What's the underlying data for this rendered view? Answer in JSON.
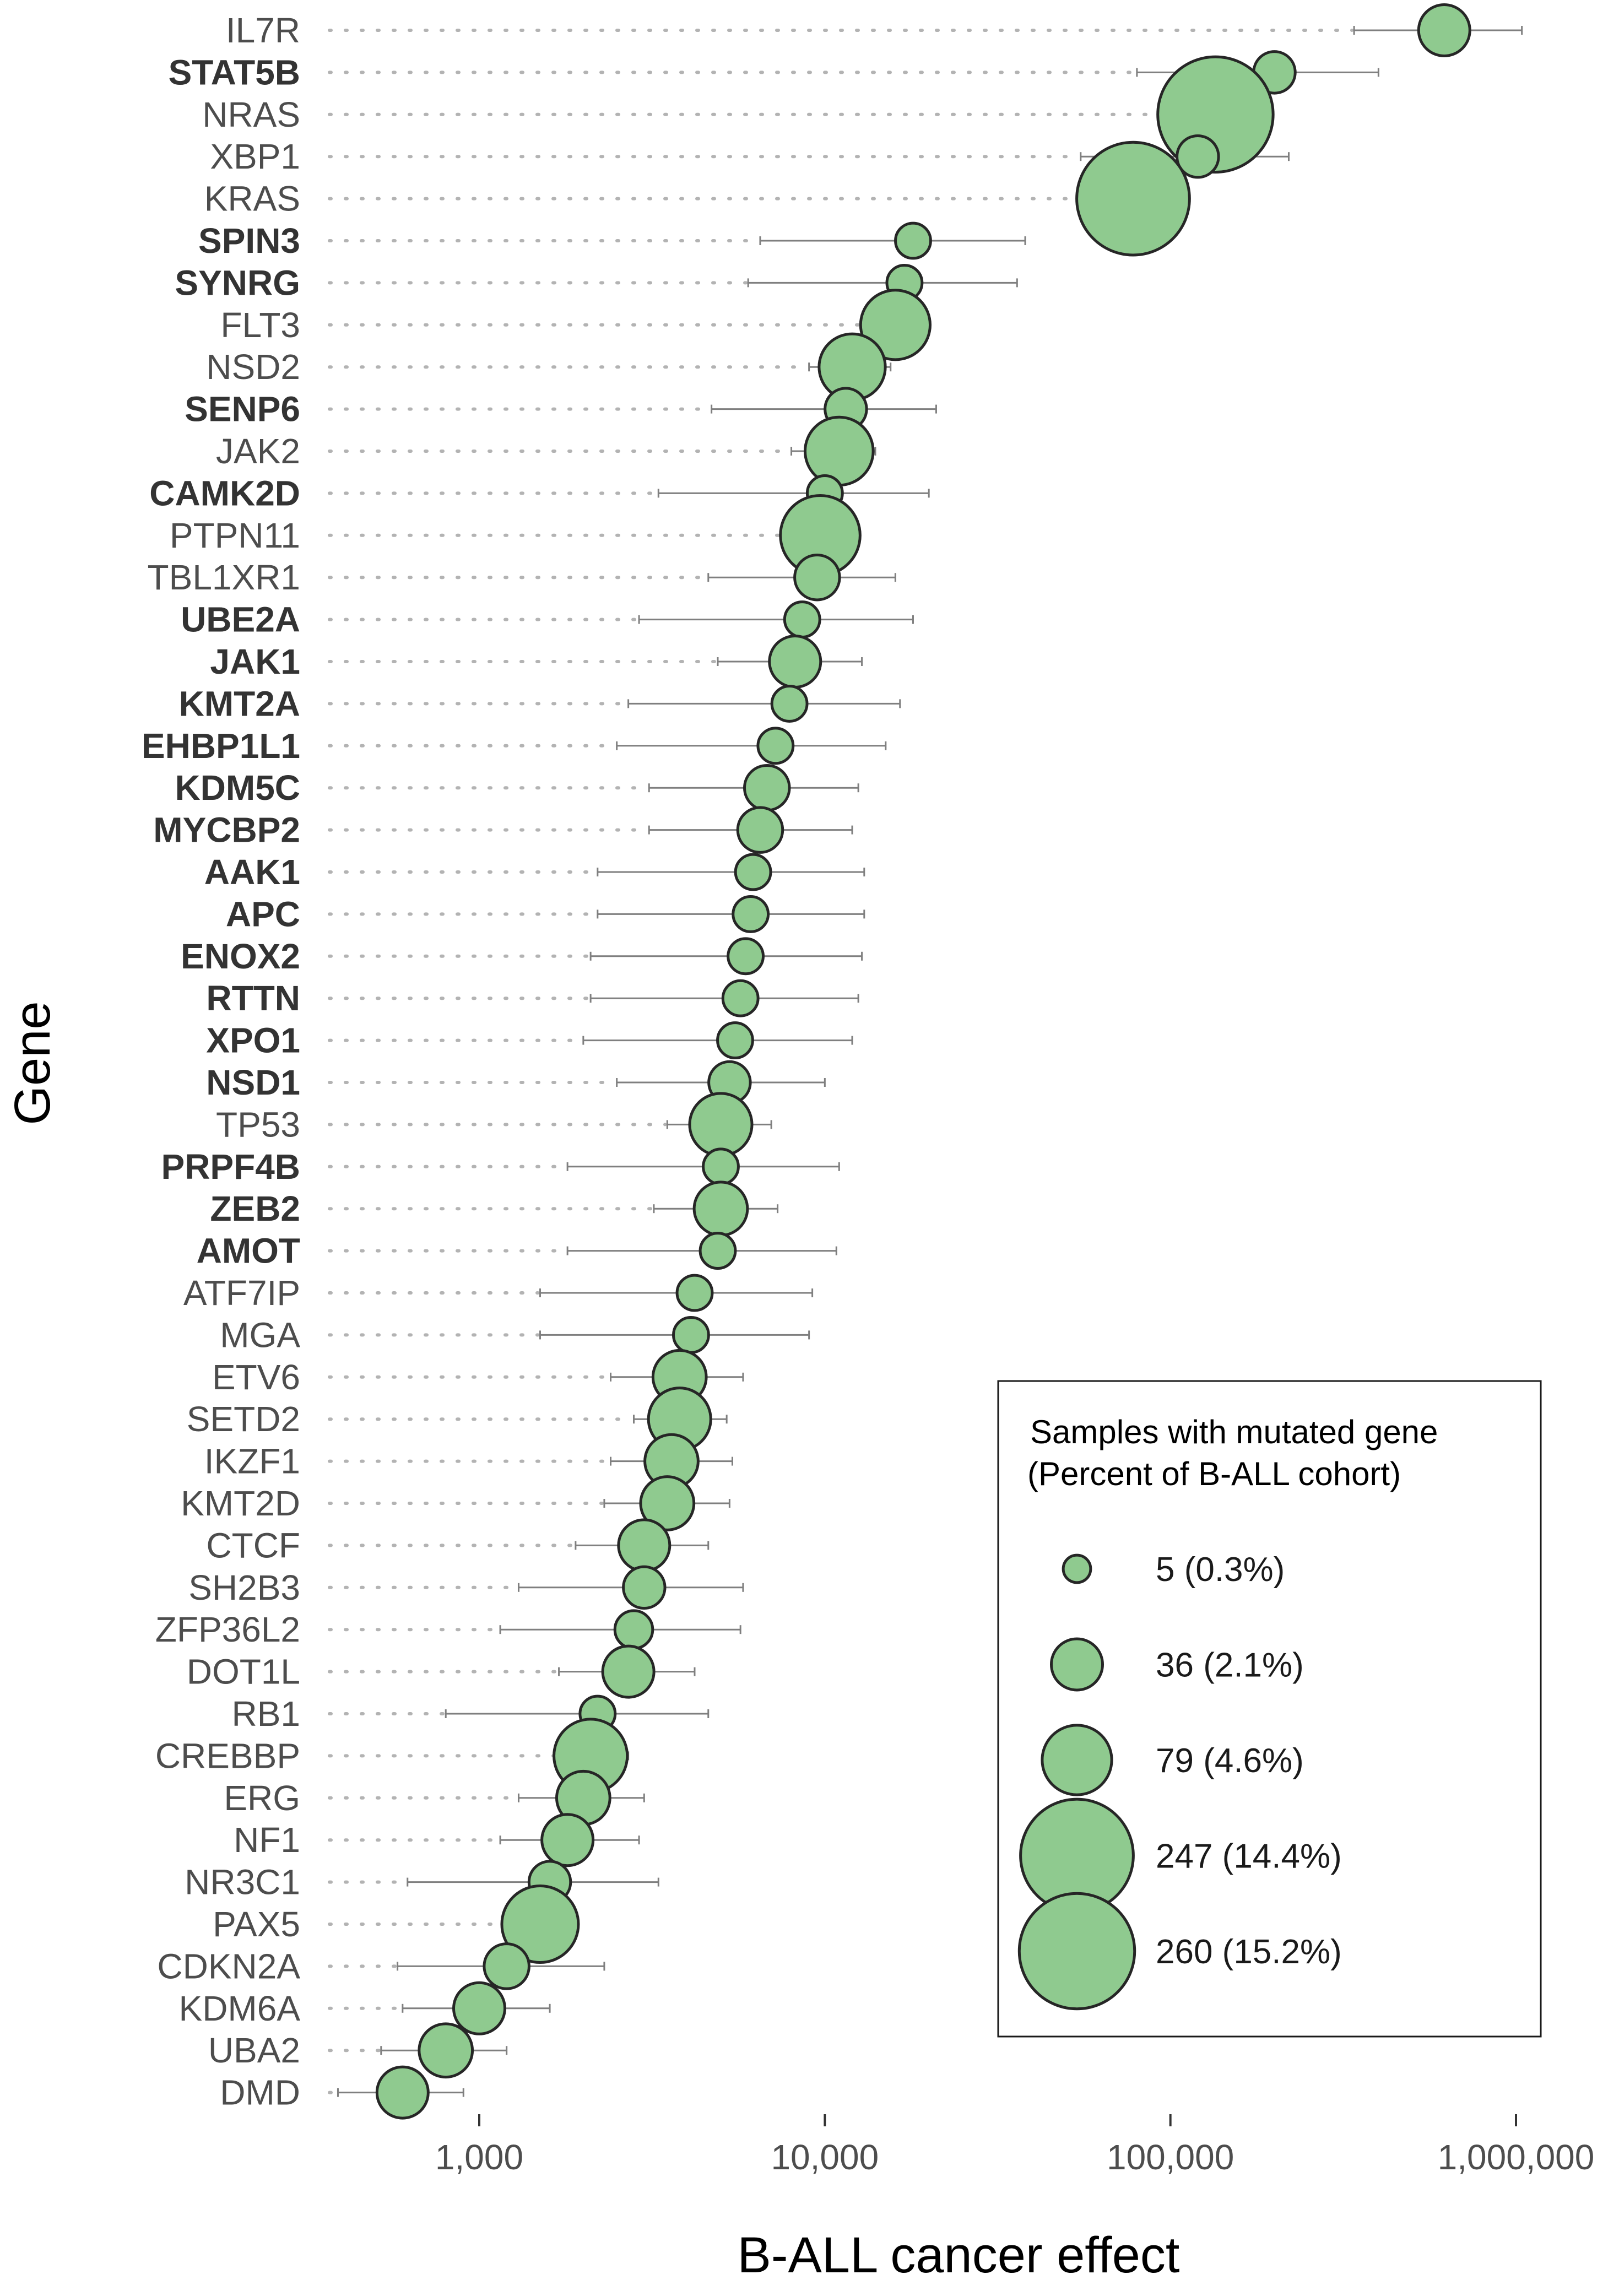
{
  "chart_data": {
    "type": "scatter",
    "xlabel": "B-ALL cancer effect",
    "ylabel": "Gene",
    "xscale": "log",
    "xlim": [
      340,
      1500000
    ],
    "xticks": [
      1000,
      10000,
      100000,
      1000000
    ],
    "xtick_labels": [
      "1,000",
      "10,000",
      "100,000",
      "1,000,000"
    ],
    "point_color": "#8fca8f",
    "genes": [
      {
        "name": "IL7R",
        "bold": false,
        "effect": 620000,
        "ci": [
          340000,
          1040000
        ],
        "samples": 36
      },
      {
        "name": "STAT5B",
        "bold": true,
        "effect": 200000,
        "ci": [
          80000,
          400000
        ],
        "samples": 20
      },
      {
        "name": "NRAS",
        "bold": false,
        "effect": 135000,
        "ci": [
          100000,
          160000
        ],
        "samples": 260
      },
      {
        "name": "XBP1",
        "bold": false,
        "effect": 120000,
        "ci": [
          55000,
          220000
        ],
        "samples": 20
      },
      {
        "name": "KRAS",
        "bold": false,
        "effect": 78000,
        "ci": [
          60000,
          95000
        ],
        "samples": 247
      },
      {
        "name": "SPIN3",
        "bold": true,
        "effect": 18000,
        "ci": [
          6500,
          38000
        ],
        "samples": 12
      },
      {
        "name": "SYNRG",
        "bold": true,
        "effect": 17000,
        "ci": [
          6000,
          36000
        ],
        "samples": 12
      },
      {
        "name": "FLT3",
        "bold": false,
        "effect": 16000,
        "ci": [
          13000,
          20000
        ],
        "samples": 79
      },
      {
        "name": "NSD2",
        "bold": false,
        "effect": 12000,
        "ci": [
          9000,
          15500
        ],
        "samples": 70
      },
      {
        "name": "SENP6",
        "bold": true,
        "effect": 11500,
        "ci": [
          4700,
          21000
        ],
        "samples": 20
      },
      {
        "name": "JAK2",
        "bold": false,
        "effect": 11000,
        "ci": [
          8000,
          14000
        ],
        "samples": 75
      },
      {
        "name": "CAMK2D",
        "bold": true,
        "effect": 10000,
        "ci": [
          3300,
          20000
        ],
        "samples": 12
      },
      {
        "name": "PTPN11",
        "bold": false,
        "effect": 9700,
        "ci": [
          7800,
          11800
        ],
        "samples": 110
      },
      {
        "name": "TBL1XR1",
        "bold": false,
        "effect": 9500,
        "ci": [
          4600,
          16000
        ],
        "samples": 25
      },
      {
        "name": "UBE2A",
        "bold": true,
        "effect": 8600,
        "ci": [
          2900,
          18000
        ],
        "samples": 12
      },
      {
        "name": "JAK1",
        "bold": true,
        "effect": 8200,
        "ci": [
          4900,
          12800
        ],
        "samples": 36
      },
      {
        "name": "KMT2A",
        "bold": true,
        "effect": 7900,
        "ci": [
          2700,
          16500
        ],
        "samples": 12
      },
      {
        "name": "EHBP1L1",
        "bold": true,
        "effect": 7200,
        "ci": [
          2500,
          15000
        ],
        "samples": 12
      },
      {
        "name": "KDM5C",
        "bold": true,
        "effect": 6800,
        "ci": [
          3100,
          12500
        ],
        "samples": 25
      },
      {
        "name": "MYCBP2",
        "bold": true,
        "effect": 6500,
        "ci": [
          3100,
          12000
        ],
        "samples": 25
      },
      {
        "name": "AAK1",
        "bold": true,
        "effect": 6200,
        "ci": [
          2200,
          13000
        ],
        "samples": 12
      },
      {
        "name": "APC",
        "bold": true,
        "effect": 6100,
        "ci": [
          2200,
          13000
        ],
        "samples": 12
      },
      {
        "name": "ENOX2",
        "bold": true,
        "effect": 5900,
        "ci": [
          2100,
          12800
        ],
        "samples": 12
      },
      {
        "name": "RTTN",
        "bold": true,
        "effect": 5700,
        "ci": [
          2100,
          12500
        ],
        "samples": 12
      },
      {
        "name": "XPO1",
        "bold": true,
        "effect": 5500,
        "ci": [
          2000,
          12000
        ],
        "samples": 12
      },
      {
        "name": "NSD1",
        "bold": true,
        "effect": 5300,
        "ci": [
          2500,
          10000
        ],
        "samples": 20
      },
      {
        "name": "TP53",
        "bold": false,
        "effect": 5000,
        "ci": [
          3500,
          7000
        ],
        "samples": 60
      },
      {
        "name": "PRPF4B",
        "bold": true,
        "effect": 5000,
        "ci": [
          1800,
          11000
        ],
        "samples": 12
      },
      {
        "name": "ZEB2",
        "bold": true,
        "effect": 5000,
        "ci": [
          3200,
          7300
        ],
        "samples": 40
      },
      {
        "name": "AMOT",
        "bold": true,
        "effect": 4900,
        "ci": [
          1800,
          10800
        ],
        "samples": 12
      },
      {
        "name": "ATF7IP",
        "bold": false,
        "effect": 4200,
        "ci": [
          1500,
          9200
        ],
        "samples": 12
      },
      {
        "name": "MGA",
        "bold": false,
        "effect": 4100,
        "ci": [
          1500,
          9000
        ],
        "samples": 12
      },
      {
        "name": "ETV6",
        "bold": false,
        "effect": 3800,
        "ci": [
          2400,
          5800
        ],
        "samples": 40
      },
      {
        "name": "SETD2",
        "bold": false,
        "effect": 3800,
        "ci": [
          2800,
          5200
        ],
        "samples": 60
      },
      {
        "name": "IKZF1",
        "bold": false,
        "effect": 3600,
        "ci": [
          2400,
          5400
        ],
        "samples": 40
      },
      {
        "name": "KMT2D",
        "bold": false,
        "effect": 3500,
        "ci": [
          2300,
          5300
        ],
        "samples": 40
      },
      {
        "name": "CTCF",
        "bold": false,
        "effect": 3000,
        "ci": [
          1900,
          4600
        ],
        "samples": 36
      },
      {
        "name": "SH2B3",
        "bold": false,
        "effect": 3000,
        "ci": [
          1300,
          5800
        ],
        "samples": 20
      },
      {
        "name": "ZFP36L2",
        "bold": false,
        "effect": 2800,
        "ci": [
          1150,
          5700
        ],
        "samples": 15
      },
      {
        "name": "DOT1L",
        "bold": false,
        "effect": 2700,
        "ci": [
          1700,
          4200
        ],
        "samples": 36
      },
      {
        "name": "RB1",
        "bold": false,
        "effect": 2200,
        "ci": [
          800,
          4600
        ],
        "samples": 12
      },
      {
        "name": "CREBBP",
        "bold": false,
        "effect": 2100,
        "ci": [
          1700,
          2700
        ],
        "samples": 90
      },
      {
        "name": "ERG",
        "bold": false,
        "effect": 2000,
        "ci": [
          1300,
          3000
        ],
        "samples": 40
      },
      {
        "name": "NF1",
        "bold": false,
        "effect": 1800,
        "ci": [
          1150,
          2900
        ],
        "samples": 36
      },
      {
        "name": "NR3C1",
        "bold": false,
        "effect": 1600,
        "ci": [
          620,
          3300
        ],
        "samples": 20
      },
      {
        "name": "PAX5",
        "bold": false,
        "effect": 1500,
        "ci": [
          1200,
          1800
        ],
        "samples": 100
      },
      {
        "name": "CDKN2A",
        "bold": false,
        "effect": 1200,
        "ci": [
          580,
          2300
        ],
        "samples": 25
      },
      {
        "name": "KDM6A",
        "bold": false,
        "effect": 1000,
        "ci": [
          600,
          1600
        ],
        "samples": 36
      },
      {
        "name": "UBA2",
        "bold": false,
        "effect": 800,
        "ci": [
          520,
          1200
        ],
        "samples": 40
      },
      {
        "name": "DMD",
        "bold": false,
        "effect": 600,
        "ci": [
          390,
          900
        ],
        "samples": 36
      }
    ],
    "legend": {
      "title_line1": "Samples with mutated gene",
      "title_line2": "(Percent of B-ALL cohort)",
      "placement": "bottom-right",
      "entries": [
        {
          "samples": 5,
          "label": "5 (0.3%)"
        },
        {
          "samples": 36,
          "label": "36 (2.1%)"
        },
        {
          "samples": 79,
          "label": "79 (4.6%)"
        },
        {
          "samples": 247,
          "label": "247 (14.4%)"
        },
        {
          "samples": 260,
          "label": "260 (15.2%)"
        }
      ]
    }
  }
}
